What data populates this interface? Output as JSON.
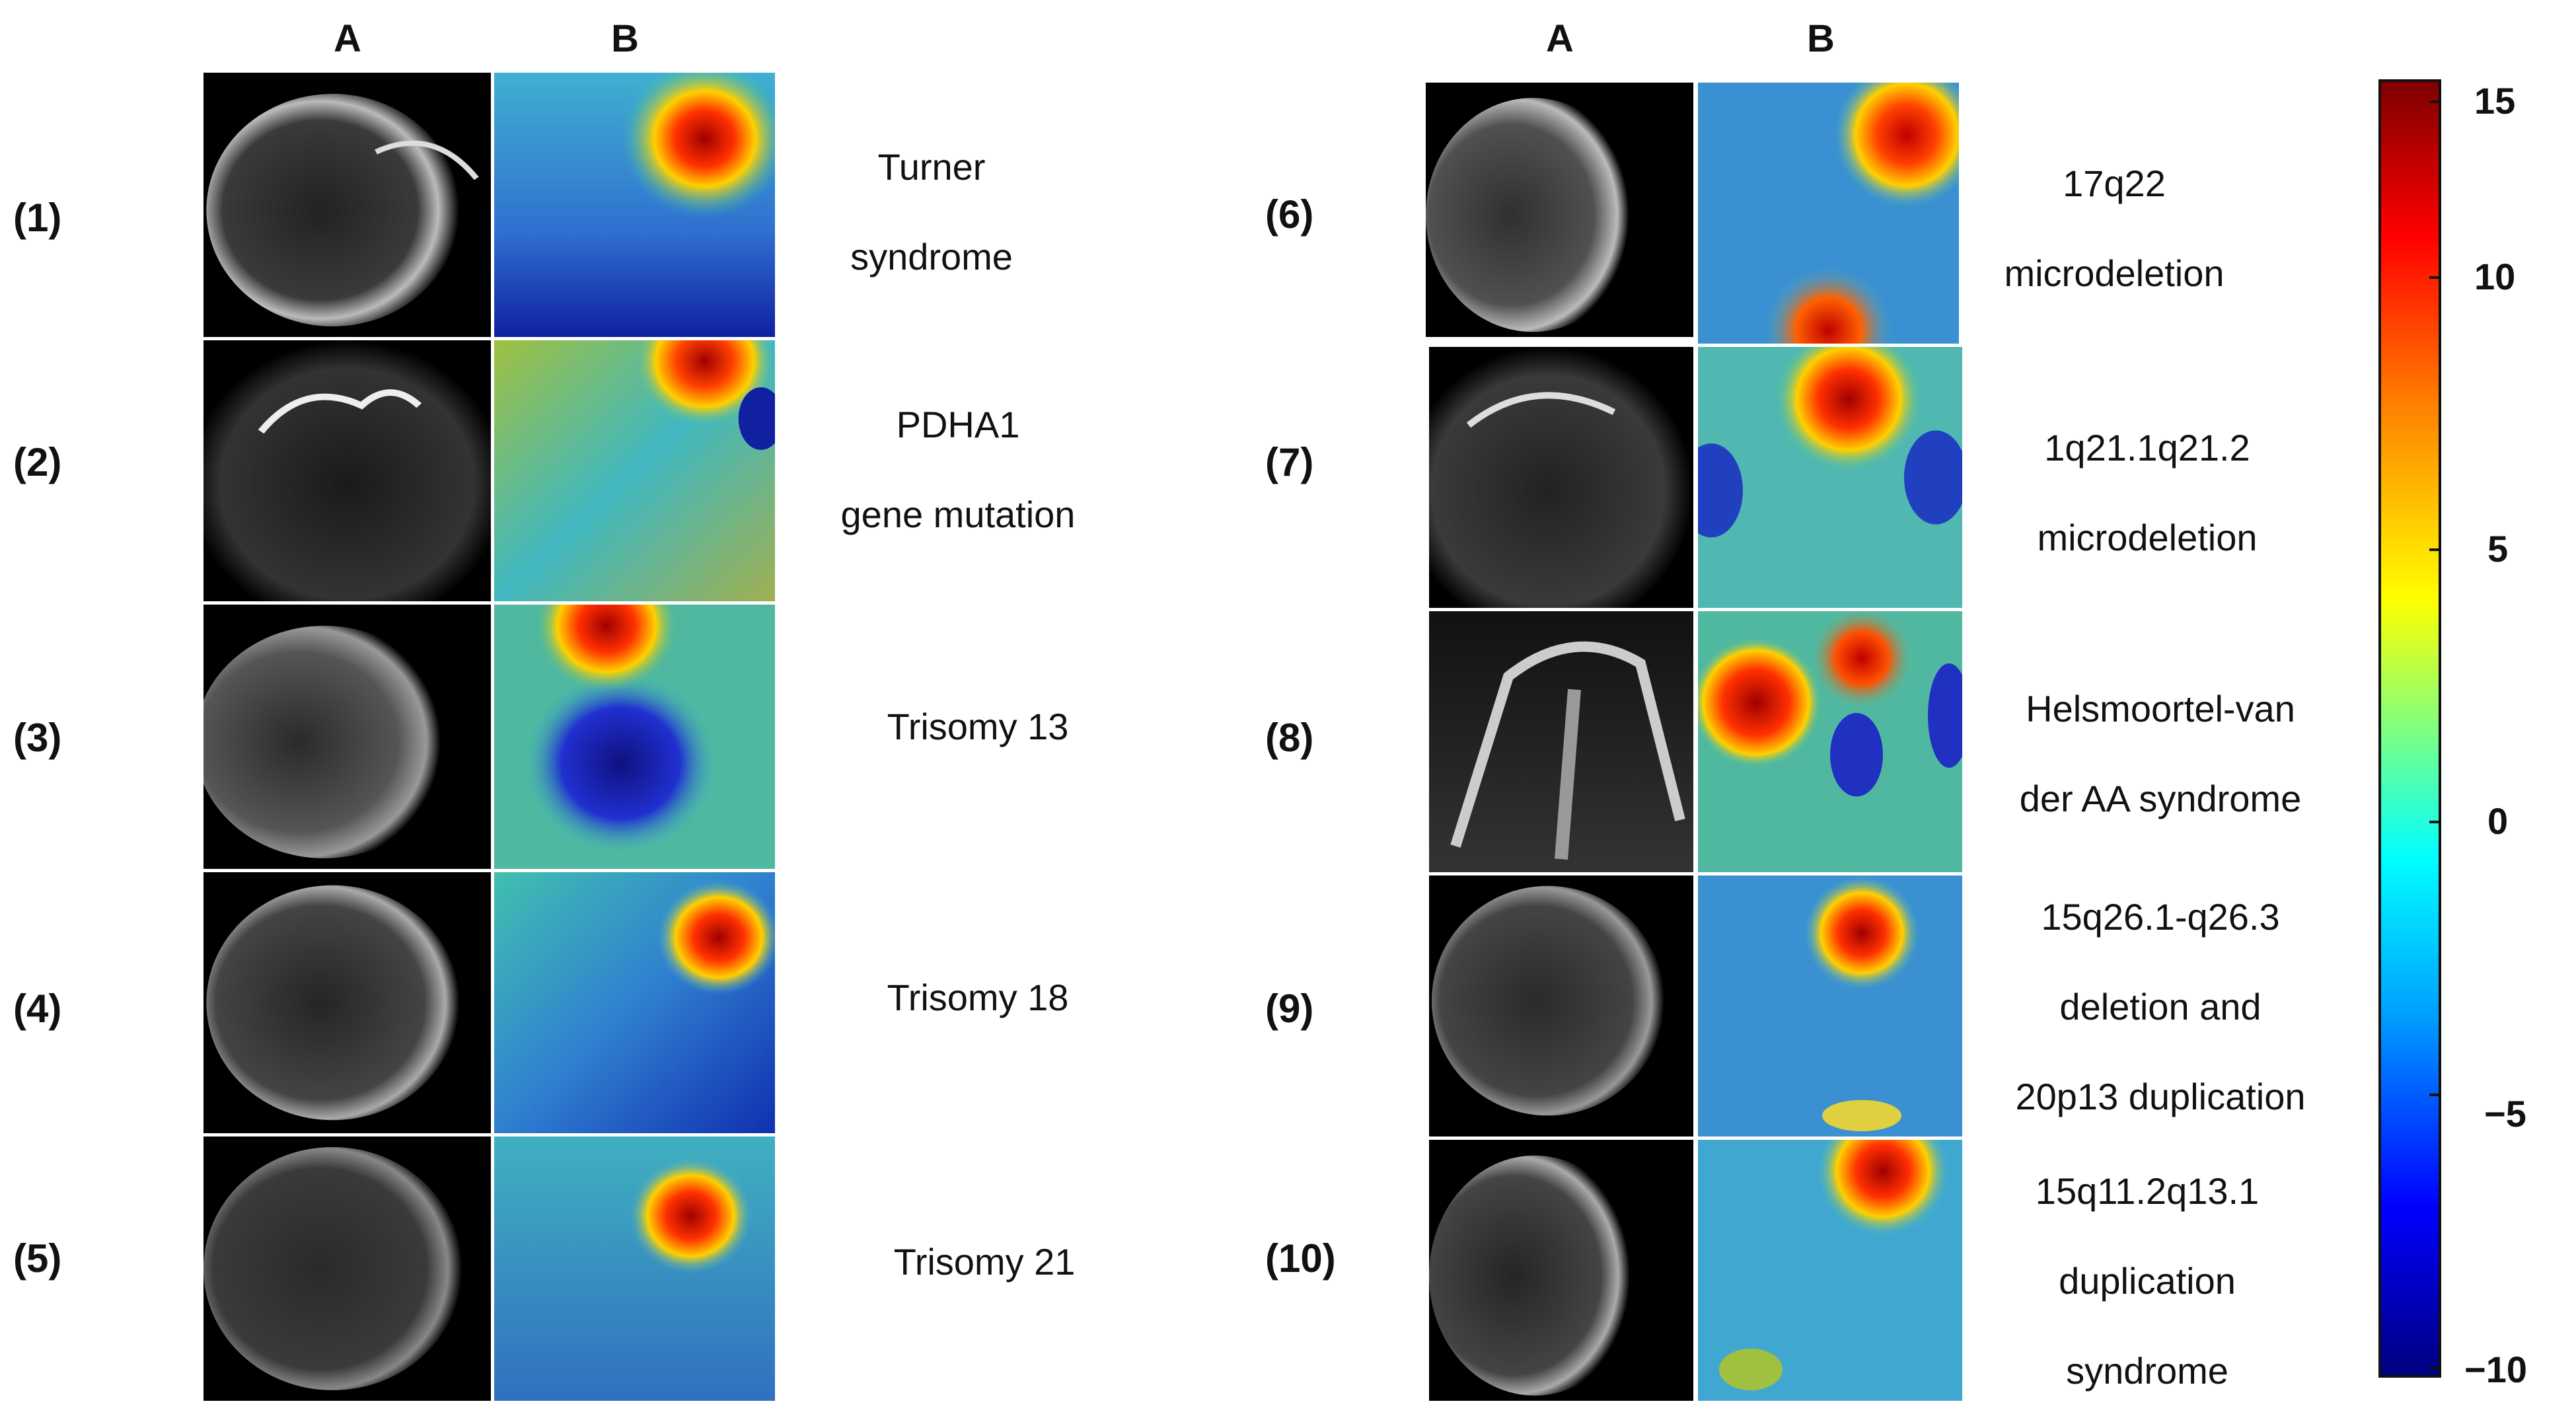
{
  "left_group": {
    "headers": {
      "a": "A",
      "b": "B"
    },
    "rows": [
      {
        "label": "(1)",
        "description": [
          "Turner",
          "syndrome"
        ]
      },
      {
        "label": "(2)",
        "description": [
          "PDHA1",
          "gene mutation"
        ]
      },
      {
        "label": "(3)",
        "description": [
          "Trisomy 13"
        ]
      },
      {
        "label": "(4)",
        "description": [
          "Trisomy 18"
        ]
      },
      {
        "label": "(5)",
        "description": [
          "Trisomy 21"
        ]
      }
    ]
  },
  "right_group": {
    "headers": {
      "a": "A",
      "b": "B"
    },
    "rows": [
      {
        "label": "(6)",
        "description": [
          "17q22",
          "microdeletion"
        ]
      },
      {
        "label": "(7)",
        "description": [
          "1q21.1q21.2",
          "microdeletion"
        ]
      },
      {
        "label": "(8)",
        "description": [
          "Helsmoortel-van",
          "der AA syndrome"
        ]
      },
      {
        "label": "(9)",
        "description": [
          "15q26.1-q26.3",
          "deletion and",
          "20p13 duplication"
        ]
      },
      {
        "label": "(10)",
        "description": [
          "15q11.2q13.1",
          "duplication",
          "syndrome"
        ]
      }
    ]
  },
  "colorbar": {
    "ticks": [
      "15",
      "10",
      "5",
      "0",
      "−5",
      "−10"
    ],
    "range": [
      -10,
      15
    ],
    "colormap": [
      "#000080",
      "#0000ff",
      "#00a0ff",
      "#00ffff",
      "#80ff80",
      "#ffff00",
      "#ff8000",
      "#ff0000",
      "#800000"
    ]
  }
}
